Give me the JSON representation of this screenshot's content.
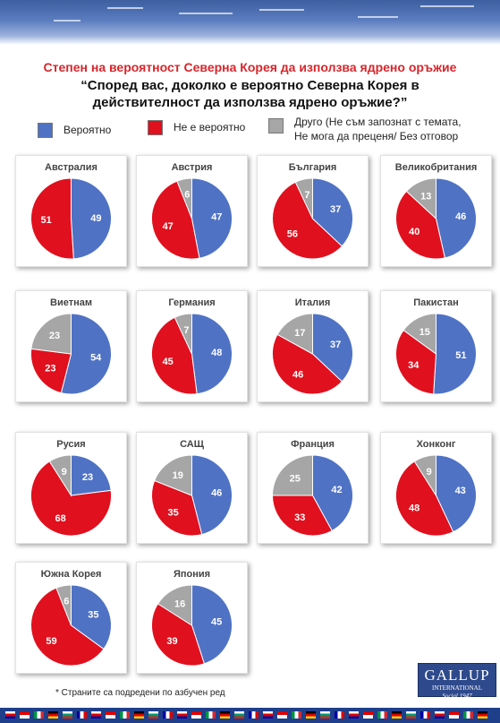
{
  "header": {
    "title": "Степен на вероятност Северна Корея да използва ядрено оръжие",
    "question": "“Според вас, доколко е вероятно Северна Корея в действителност да използва ядрено оръжие?”"
  },
  "legend": [
    {
      "label": "Вероятно",
      "color": "#4f72c4"
    },
    {
      "label": "Не е вероятно",
      "color": "#e0101e"
    },
    {
      "label": "Друго (Не съм запознат с темата, Не мога да преценя/ Без отговор",
      "color": "#a6a6a6"
    }
  ],
  "footnote": "* Страните са подредени  по азбучен ред",
  "logo": {
    "name": "GALLUP",
    "subtitle": "INTERNATIONAL",
    "tagline": "Social 1947"
  },
  "chart_data": {
    "type": "pie",
    "series_names": [
      "Вероятно",
      "Не е вероятно",
      "Друго"
    ],
    "colors": [
      "#4f72c4",
      "#e0101e",
      "#a6a6a6"
    ],
    "countries": [
      {
        "name": "Австралия",
        "values": [
          49,
          51,
          0
        ]
      },
      {
        "name": "Австрия",
        "values": [
          47,
          47,
          6
        ]
      },
      {
        "name": "България",
        "values": [
          37,
          56,
          7
        ]
      },
      {
        "name": "Великобритания",
        "values": [
          46,
          40,
          13
        ]
      },
      {
        "name": "Виетнам",
        "values": [
          54,
          23,
          23
        ]
      },
      {
        "name": "Германия",
        "values": [
          48,
          45,
          7
        ]
      },
      {
        "name": "Италия",
        "values": [
          37,
          46,
          17
        ]
      },
      {
        "name": "Пакистан",
        "values": [
          51,
          34,
          15
        ]
      },
      {
        "name": "Русия",
        "values": [
          23,
          68,
          9
        ]
      },
      {
        "name": "САЩ",
        "values": [
          46,
          35,
          19
        ]
      },
      {
        "name": "Франция",
        "values": [
          42,
          33,
          25
        ]
      },
      {
        "name": "Хонконг",
        "values": [
          43,
          48,
          9
        ]
      },
      {
        "name": "Южна Корея",
        "values": [
          35,
          59,
          6
        ]
      },
      {
        "name": "Япония",
        "values": [
          45,
          39,
          16
        ]
      }
    ]
  }
}
